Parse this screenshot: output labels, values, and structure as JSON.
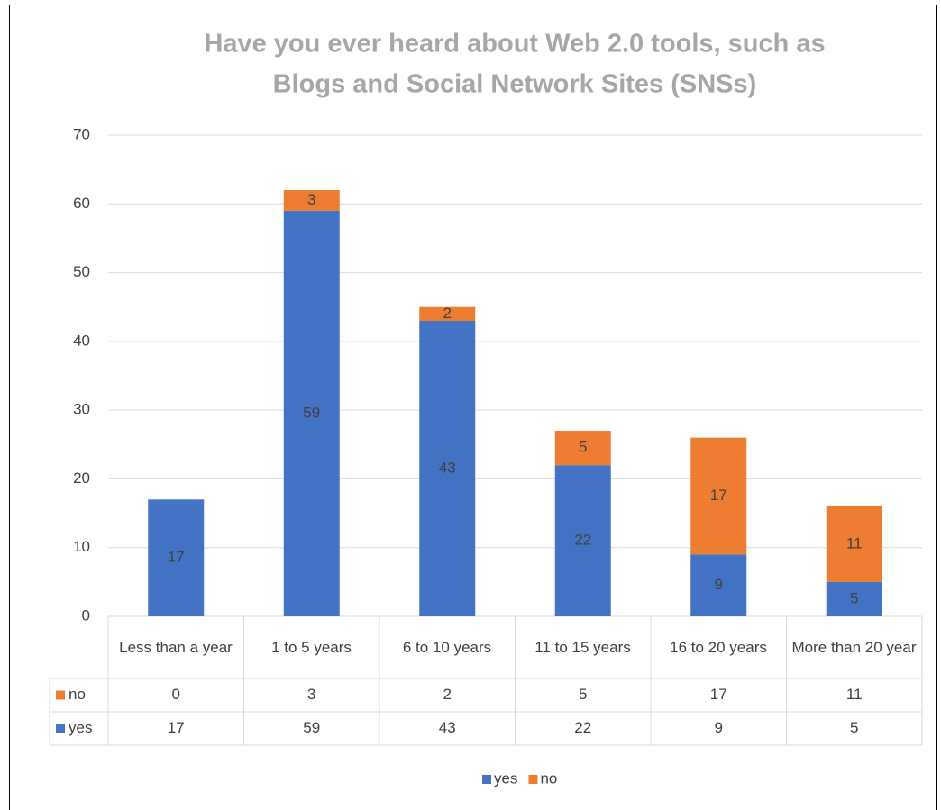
{
  "chart_data": {
    "type": "bar",
    "stacked": true,
    "title": [
      "Have you ever heard about Web 2.0 tools, such as",
      "Blogs and Social Network Sites (SNSs)"
    ],
    "categories": [
      "Less than a year",
      "1 to 5 years",
      "6 to 10 years",
      "11 to 15 years",
      "16 to 20 years",
      "More than 20 year"
    ],
    "series": [
      {
        "name": "yes",
        "color": "#4472c4",
        "values": [
          17,
          59,
          43,
          22,
          9,
          5
        ]
      },
      {
        "name": "no",
        "color": "#ed7d31",
        "values": [
          0,
          3,
          2,
          5,
          17,
          11
        ]
      }
    ],
    "ylim": [
      0,
      70
    ],
    "yticks": [
      0,
      10,
      20,
      30,
      40,
      50,
      60,
      70
    ],
    "grid": true,
    "legend": "bottom",
    "data_table": true
  }
}
